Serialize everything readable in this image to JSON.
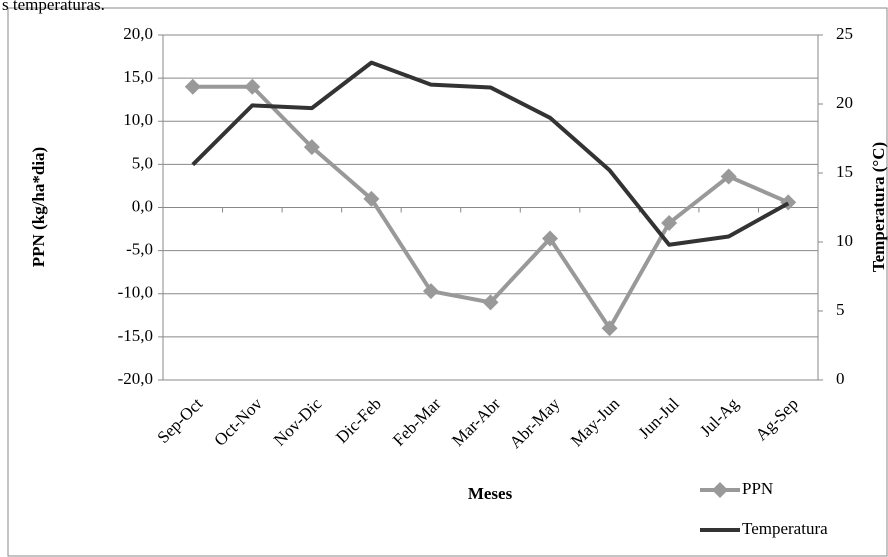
{
  "annotation": "s temperaturas.",
  "chart_data": {
    "type": "line",
    "x_label": "Meses",
    "y_label": "PPN (kg/ha*dia)",
    "y2_label": "Temperatura (°C)",
    "categories": [
      "Sep-Oct",
      "Oct-Nov",
      "Nov-Dic",
      "Dic-Feb",
      "Feb-Mar",
      "Mar-Abr",
      "Abr-May",
      "May-Jun",
      "Jun-Jul",
      "Jul-Ag",
      "Ag-Sep"
    ],
    "series": [
      {
        "name": "PPN",
        "color": "#999999",
        "marker": "diamond",
        "values": [
          14.0,
          14.0,
          7.0,
          1.0,
          -9.7,
          -11.0,
          -3.6,
          -14.0,
          -1.8,
          3.6,
          0.6
        ]
      },
      {
        "name": "Temperatura",
        "color": "#333333",
        "axis": "y2",
        "values": [
          15.6,
          19.9,
          19.7,
          23.0,
          21.4,
          21.2,
          19.0,
          15.2,
          9.8,
          10.4,
          12.8
        ]
      }
    ],
    "ylim": [
      -20,
      20
    ],
    "yticks": [
      {
        "value": -20,
        "label": "-20,0"
      },
      {
        "value": -15,
        "label": "-15,0"
      },
      {
        "value": -10,
        "label": "-10,0"
      },
      {
        "value": -5,
        "label": "-5,0"
      },
      {
        "value": 0,
        "label": "0,0"
      },
      {
        "value": 5,
        "label": "5,0"
      },
      {
        "value": 10,
        "label": "10,0"
      },
      {
        "value": 15,
        "label": "15,0"
      },
      {
        "value": 20,
        "label": "20,0"
      }
    ],
    "y2lim": [
      0,
      25
    ],
    "y2ticks": [
      0,
      5,
      10,
      15,
      20,
      25
    ],
    "grid": true,
    "legend": "bottom-right"
  }
}
